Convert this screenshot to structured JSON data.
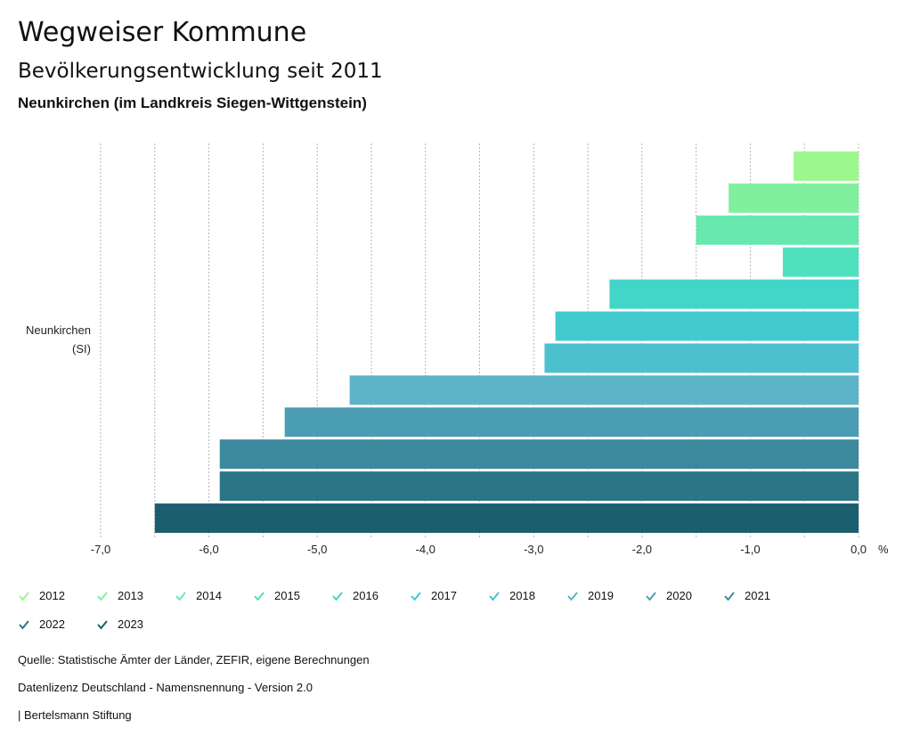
{
  "header": {
    "title": "Wegweiser Kommune",
    "subtitle": "Bevölkerungsentwicklung seit 2011",
    "region": "Neunkirchen (im Landkreis Siegen-Wittgenstein)"
  },
  "chart_data": {
    "type": "bar",
    "orientation": "horizontal",
    "category_label": [
      "Neunkirchen",
      "(SI)"
    ],
    "unit": "%",
    "xlim": [
      -7,
      0
    ],
    "ticks": [
      {
        "value": -7,
        "label": "-7,0"
      },
      {
        "value": -6,
        "label": "-6,0"
      },
      {
        "value": -5,
        "label": "-5,0"
      },
      {
        "value": -4,
        "label": "-4,0"
      },
      {
        "value": -3,
        "label": "-3,0"
      },
      {
        "value": -2,
        "label": "-2,0"
      },
      {
        "value": -1,
        "label": "-1,0"
      },
      {
        "value": 0,
        "label": "0,0"
      }
    ],
    "grid": true,
    "series": [
      {
        "name": "2012",
        "value": -0.6,
        "color": "#9cf78e"
      },
      {
        "name": "2013",
        "value": -1.2,
        "color": "#81f09e"
      },
      {
        "name": "2014",
        "value": -1.5,
        "color": "#66e8ae"
      },
      {
        "name": "2015",
        "value": -0.7,
        "color": "#4fe1be"
      },
      {
        "name": "2016",
        "value": -2.3,
        "color": "#41d6c8"
      },
      {
        "name": "2017",
        "value": -2.8,
        "color": "#42cbce"
      },
      {
        "name": "2018",
        "value": -2.9,
        "color": "#4cc0cf"
      },
      {
        "name": "2019",
        "value": -4.7,
        "color": "#5bb4c8"
      },
      {
        "name": "2020",
        "value": -5.3,
        "color": "#4a9db3"
      },
      {
        "name": "2021",
        "value": -5.9,
        "color": "#3c899d"
      },
      {
        "name": "2022",
        "value": -5.9,
        "color": "#2b7586"
      },
      {
        "name": "2023",
        "value": -6.5,
        "color": "#1a5e6f"
      }
    ]
  },
  "footer": {
    "source": "Quelle: Statistische Ämter der Länder, ZEFIR, eigene Berechnungen",
    "license": "Datenlizenz Deutschland - Namensnennung - Version 2.0",
    "publisher": "| Bertelsmann Stiftung"
  }
}
